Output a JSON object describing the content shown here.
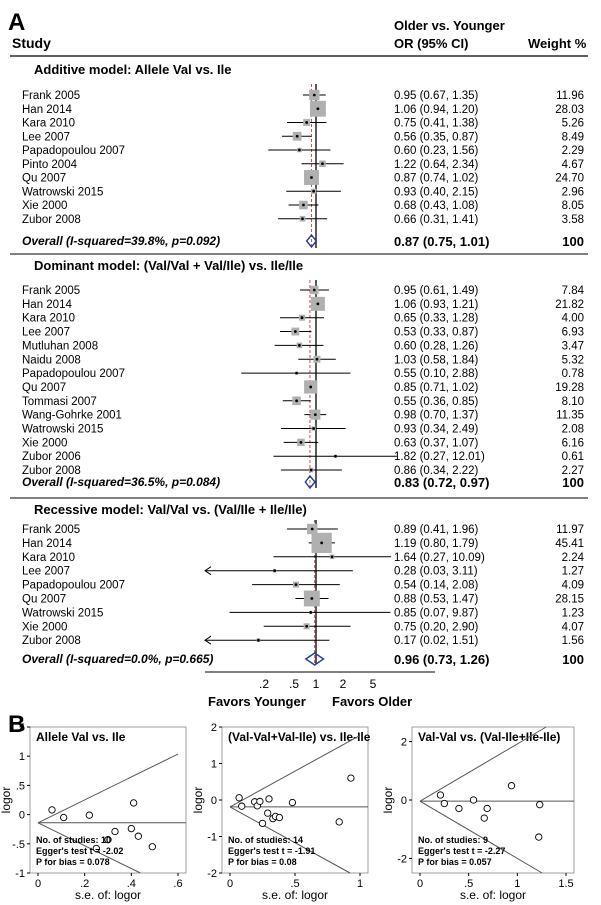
{
  "panel_a": {
    "letter": "A",
    "col_study": "Study",
    "col_or_l1": "Older vs. Younger",
    "col_or_l2": "OR (95% CI)",
    "col_weight": "Weight %",
    "axis_ticks": [
      ".2",
      ".5",
      "1",
      "2",
      "5"
    ],
    "favors_left": "Favors Younger",
    "favors_right": "Favors Older"
  },
  "panel_b": {
    "letter": "B"
  },
  "chart_data": [
    {
      "type": "forest",
      "subgroup": "Additive model: Allele Val vs. Ile",
      "x_scale": "log",
      "studies": [
        {
          "study": "Frank  2005",
          "or": 0.95,
          "lo": 0.67,
          "hi": 1.35,
          "ci": "0.95 (0.67, 1.35)",
          "weight": "11.96"
        },
        {
          "study": "Han 2014",
          "or": 1.06,
          "lo": 0.94,
          "hi": 1.2,
          "ci": "1.06 (0.94, 1.20)",
          "weight": "28.03"
        },
        {
          "study": "Kara  2010",
          "or": 0.75,
          "lo": 0.41,
          "hi": 1.38,
          "ci": "0.75 (0.41, 1.38)",
          "weight": "5.26"
        },
        {
          "study": "Lee  2007",
          "or": 0.56,
          "lo": 0.35,
          "hi": 0.87,
          "ci": "0.56 (0.35, 0.87)",
          "weight": "8.49"
        },
        {
          "study": "Papadopoulou  2007",
          "or": 0.6,
          "lo": 0.23,
          "hi": 1.56,
          "ci": "0.60 (0.23, 1.56)",
          "weight": "2.29"
        },
        {
          "study": "Pinto  2004",
          "or": 1.22,
          "lo": 0.64,
          "hi": 2.34,
          "ci": "1.22 (0.64, 2.34)",
          "weight": "4.67"
        },
        {
          "study": "Qu  2007",
          "or": 0.87,
          "lo": 0.74,
          "hi": 1.02,
          "ci": "0.87 (0.74, 1.02)",
          "weight": "24.70"
        },
        {
          "study": "Watrowski  2015",
          "or": 0.93,
          "lo": 0.4,
          "hi": 2.15,
          "ci": "0.93 (0.40, 2.15)",
          "weight": "2.96"
        },
        {
          "study": "Xie  2000",
          "or": 0.68,
          "lo": 0.43,
          "hi": 1.08,
          "ci": "0.68 (0.43, 1.08)",
          "weight": "8.05"
        },
        {
          "study": "Zubor 2008",
          "or": 0.66,
          "lo": 0.31,
          "hi": 1.41,
          "ci": "0.66 (0.31, 1.41)",
          "weight": "3.58"
        }
      ],
      "overall": {
        "label": "Overall  (I-squared=39.8%, p=0.092)",
        "or": 0.87,
        "lo": 0.75,
        "hi": 1.01,
        "ci": "0.87 (0.75, 1.01)",
        "weight": "100"
      }
    },
    {
      "type": "forest",
      "subgroup": "Dominant model: (Val/Val + Val/Ile)  vs. Ile/Ile",
      "x_scale": "log",
      "studies": [
        {
          "study": "Frank  2005",
          "or": 0.95,
          "lo": 0.61,
          "hi": 1.49,
          "ci": "0.95 (0.61, 1.49)",
          "weight": "7.84"
        },
        {
          "study": "Han 2014",
          "or": 1.06,
          "lo": 0.93,
          "hi": 1.21,
          "ci": "1.06 (0.93, 1.21)",
          "weight": "21.82"
        },
        {
          "study": "Kara  2010",
          "or": 0.65,
          "lo": 0.33,
          "hi": 1.28,
          "ci": "0.65 (0.33, 1.28)",
          "weight": "4.00"
        },
        {
          "study": "Lee  2007",
          "or": 0.53,
          "lo": 0.33,
          "hi": 0.87,
          "ci": "0.53 (0.33, 0.87)",
          "weight": "6.93"
        },
        {
          "study": "Mutluhan  2008",
          "or": 0.6,
          "lo": 0.28,
          "hi": 1.26,
          "ci": "0.60 (0.28, 1.26)",
          "weight": "3.47"
        },
        {
          "study": "Naidu  2008",
          "or": 1.03,
          "lo": 0.58,
          "hi": 1.84,
          "ci": "1.03 (0.58, 1.84)",
          "weight": "5.32"
        },
        {
          "study": "Papadopoulou  2007",
          "or": 0.55,
          "lo": 0.1,
          "hi": 2.88,
          "ci": "0.55 (0.10, 2.88)",
          "weight": "0.78"
        },
        {
          "study": "Qu  2007",
          "or": 0.85,
          "lo": 0.71,
          "hi": 1.02,
          "ci": "0.85 (0.71, 1.02)",
          "weight": "19.28"
        },
        {
          "study": "Tommasi  2007",
          "or": 0.55,
          "lo": 0.36,
          "hi": 0.85,
          "ci": "0.55 (0.36, 0.85)",
          "weight": "8.10"
        },
        {
          "study": "Wang-Gohrke  2001",
          "or": 0.98,
          "lo": 0.7,
          "hi": 1.37,
          "ci": "0.98 (0.70, 1.37)",
          "weight": "11.35"
        },
        {
          "study": "Watrowski  2015",
          "or": 0.93,
          "lo": 0.34,
          "hi": 2.49,
          "ci": "0.93 (0.34, 2.49)",
          "weight": "2.08"
        },
        {
          "study": "Xie  2000",
          "or": 0.63,
          "lo": 0.37,
          "hi": 1.07,
          "ci": "0.63 (0.37, 1.07)",
          "weight": "6.16"
        },
        {
          "study": "Zubor 2006",
          "or": 1.82,
          "lo": 0.27,
          "hi": 12.01,
          "ci": "1.82 (0.27, 12.01)",
          "weight": "0.61"
        },
        {
          "study": "Zubor 2008",
          "or": 0.86,
          "lo": 0.34,
          "hi": 2.22,
          "ci": "0.86 (0.34, 2.22)",
          "weight": "2.27"
        }
      ],
      "overall": {
        "label": "Overall  (I-squared=36.5%, p=0.084)",
        "or": 0.83,
        "lo": 0.72,
        "hi": 0.97,
        "ci": "0.83 (0.72, 0.97)",
        "weight": "100"
      }
    },
    {
      "type": "forest",
      "subgroup": "Recessive model: Val/Val vs. (Val/Ile + Ile/Ile)",
      "x_scale": "log",
      "studies": [
        {
          "study": "Frank  2005",
          "or": 0.89,
          "lo": 0.41,
          "hi": 1.96,
          "ci": "0.89 (0.41, 1.96)",
          "weight": "11.97"
        },
        {
          "study": "Han 2014",
          "or": 1.19,
          "lo": 0.8,
          "hi": 1.79,
          "ci": "1.19 (0.80, 1.79)",
          "weight": "45.41"
        },
        {
          "study": "Kara  2010",
          "or": 1.64,
          "lo": 0.27,
          "hi": 10.09,
          "ci": "1.64 (0.27, 10.09)",
          "weight": "2.24"
        },
        {
          "study": "Lee  2007",
          "or": 0.28,
          "lo": 0.03,
          "hi": 3.11,
          "ci": "0.28 (0.03, 3.11)",
          "weight": "1.27"
        },
        {
          "study": "Papadopoulou  2007",
          "or": 0.54,
          "lo": 0.14,
          "hi": 2.08,
          "ci": "0.54 (0.14, 2.08)",
          "weight": "4.09"
        },
        {
          "study": "Qu  2007",
          "or": 0.88,
          "lo": 0.53,
          "hi": 1.47,
          "ci": "0.88 (0.53, 1.47)",
          "weight": "28.15"
        },
        {
          "study": "Watrowski  2015",
          "or": 0.85,
          "lo": 0.07,
          "hi": 9.87,
          "ci": "0.85 (0.07, 9.87)",
          "weight": "1.23"
        },
        {
          "study": "Xie  2000",
          "or": 0.75,
          "lo": 0.2,
          "hi": 2.9,
          "ci": "0.75 (0.20, 2.90)",
          "weight": "4.07"
        },
        {
          "study": "Zubor 2008",
          "or": 0.17,
          "lo": 0.02,
          "hi": 1.51,
          "ci": "0.17 (0.02, 1.51)",
          "weight": "1.56"
        }
      ],
      "overall": {
        "label": "Overall  (I-squared=0.0%, p=0.665)",
        "or": 0.96,
        "lo": 0.73,
        "hi": 1.26,
        "ci": "0.96 (0.73, 1.26)",
        "weight": "100"
      }
    },
    {
      "type": "scatter",
      "title": "Allele Val vs. Ile",
      "xlabel": "s.e. of: logor",
      "ylabel": "logor",
      "xlim": [
        0,
        0.6
      ],
      "ylim": [
        -1,
        1.5
      ],
      "xticks": [
        "0",
        ".2",
        ".4",
        ".6"
      ],
      "yticks": [
        "-1",
        "-.5",
        "0",
        ".5",
        "1",
        "1.5"
      ],
      "pooled": -0.14,
      "points": [
        [
          0.06,
          0.08
        ],
        [
          0.11,
          -0.05
        ],
        [
          0.22,
          -0.01
        ],
        [
          0.25,
          -0.58
        ],
        [
          0.33,
          -0.29
        ],
        [
          0.4,
          -0.24
        ],
        [
          0.41,
          0.2
        ],
        [
          0.43,
          -0.37
        ],
        [
          0.49,
          -0.55
        ],
        [
          0.3,
          -0.43
        ]
      ],
      "notes": [
        "No. of studies: 10",
        "Egger's test t = -2.02",
        "P for bias = 0.078"
      ]
    },
    {
      "type": "scatter",
      "title": "(Val-Val+Val-Ile) vs. Ile-Ile",
      "xlabel": "s.e. of: logor",
      "ylabel": "logor",
      "xlim": [
        0,
        1
      ],
      "ylim": [
        -2,
        2
      ],
      "xticks": [
        "0",
        ".5",
        "1"
      ],
      "yticks": [
        "-2",
        "-1",
        "0",
        "1",
        "2"
      ],
      "pooled": -0.19,
      "points": [
        [
          0.07,
          0.06
        ],
        [
          0.09,
          -0.17
        ],
        [
          0.19,
          -0.05
        ],
        [
          0.21,
          -0.16
        ],
        [
          0.23,
          -0.04
        ],
        [
          0.25,
          -0.64
        ],
        [
          0.29,
          -0.36
        ],
        [
          0.3,
          0.03
        ],
        [
          0.33,
          -0.51
        ],
        [
          0.35,
          -0.45
        ],
        [
          0.38,
          -0.48
        ],
        [
          0.48,
          -0.07
        ],
        [
          0.84,
          -0.6
        ],
        [
          0.93,
          0.6
        ]
      ],
      "notes": [
        "No. of studies: 14",
        "Egger's test t = -1.91",
        "P for bias = 0.08"
      ]
    },
    {
      "type": "scatter",
      "title": "Val-Val vs. (Val-Ile+Ile-Ile)",
      "xlabel": "s.e. of: logor",
      "ylabel": "logor",
      "xlim": [
        0,
        1.5
      ],
      "ylim": [
        -2.5,
        2.5
      ],
      "xticks": [
        "0",
        ".5",
        "1",
        "1.5"
      ],
      "yticks": [
        "-2",
        "0",
        "2"
      ],
      "pooled": -0.04,
      "points": [
        [
          0.21,
          0.17
        ],
        [
          0.25,
          -0.12
        ],
        [
          0.4,
          -0.29
        ],
        [
          0.55,
          0.0
        ],
        [
          0.66,
          -0.62
        ],
        [
          0.69,
          -0.29
        ],
        [
          0.94,
          0.49
        ],
        [
          1.23,
          -0.16
        ],
        [
          1.22,
          -1.27
        ]
      ],
      "notes": [
        "No. of studies: 9",
        "Egger's test t = -2.27",
        "P for bias = 0.057"
      ]
    }
  ]
}
